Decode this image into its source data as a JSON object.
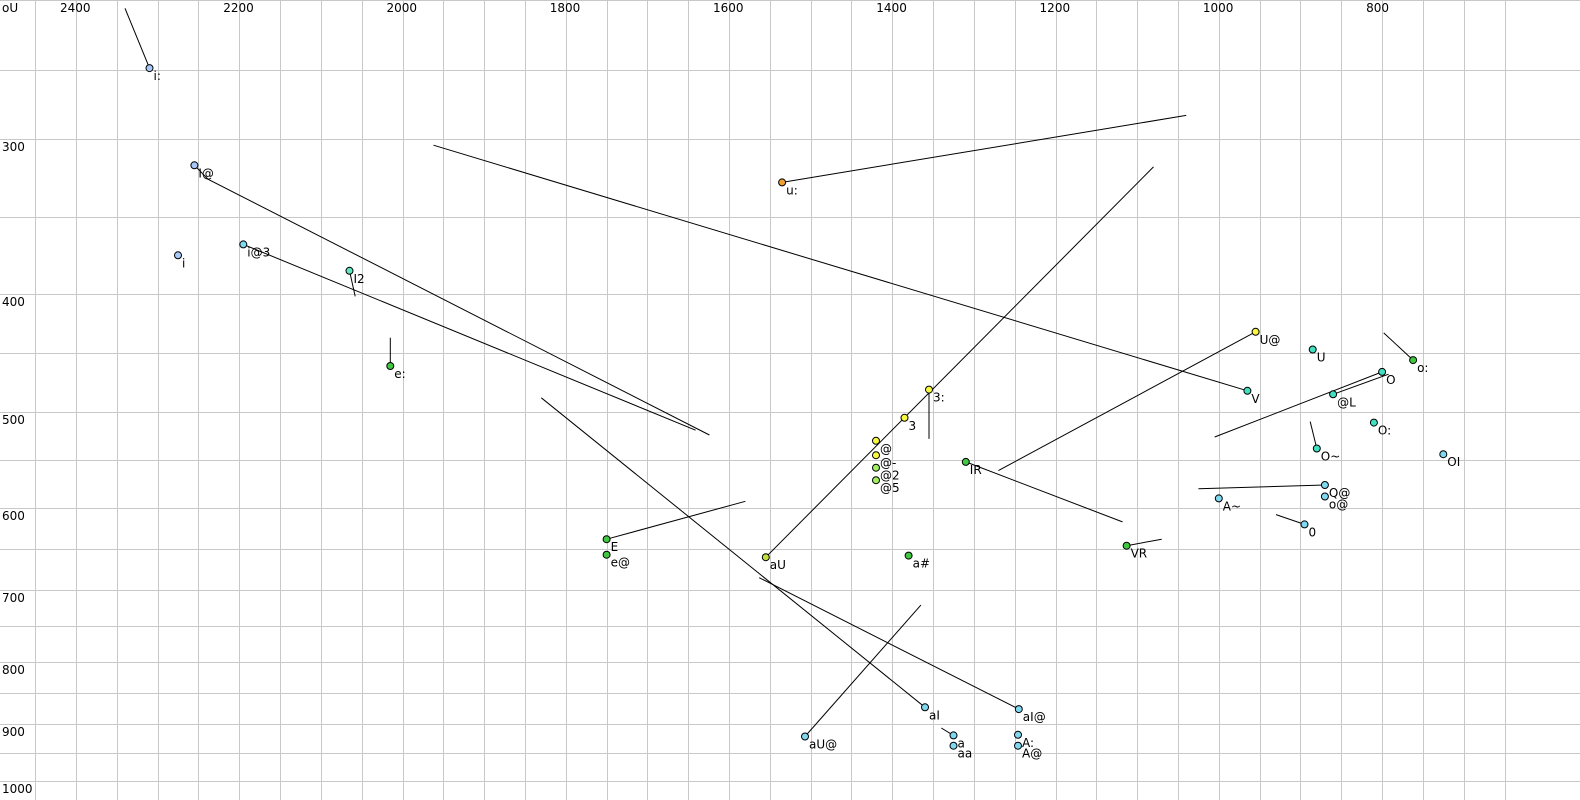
{
  "chart_data": {
    "type": "scatter",
    "title": "",
    "corner_label": "oU",
    "x_axis": {
      "reversed": true,
      "tick_labels": [
        "2400",
        "2200",
        "2000",
        "1800",
        "1600",
        "1400",
        "1200",
        "1000",
        "800"
      ],
      "tick_values": [
        2400,
        2200,
        2000,
        1800,
        1600,
        1400,
        1200,
        1000,
        800
      ]
    },
    "y_axis": {
      "tick_labels": [
        "300",
        "400",
        "500",
        "600",
        "700",
        "800",
        "900",
        "1000"
      ],
      "tick_values": [
        300,
        400,
        500,
        600,
        700,
        800,
        900,
        1000
      ]
    },
    "grid": true,
    "points": [
      {
        "label": "i:",
        "f2": 2310,
        "f1": 249,
        "color": "#a8c8f8",
        "track": [
          [
            2340,
            206
          ]
        ]
      },
      {
        "label": "I@",
        "f2": 2255,
        "f1": 317,
        "color": "#a8c8f8",
        "track": [
          [
            2238,
            326
          ],
          [
            1624,
            524
          ]
        ]
      },
      {
        "label": "i",
        "f2": 2275,
        "f1": 375,
        "color": "#a8c8f8",
        "track": []
      },
      {
        "label": "i@3",
        "f2": 2195,
        "f1": 368,
        "color": "#80d8f0",
        "track": [
          [
            1641,
            519
          ]
        ]
      },
      {
        "label": "I2",
        "f2": 2065,
        "f1": 385,
        "color": "#60e8c0",
        "track": [
          [
            2058,
            402
          ]
        ]
      },
      {
        "label": "e:",
        "f2": 2015,
        "f1": 461,
        "color": "#40c840",
        "track": [
          [
            2015,
            437
          ]
        ]
      },
      {
        "label": "u:",
        "f2": 1535,
        "f1": 328,
        "color": "#f0a030",
        "track": [
          [
            1040,
            283
          ]
        ]
      },
      {
        "label": "3:",
        "f2": 1355,
        "f1": 481,
        "color": "#f8f840",
        "track": [
          [
            1355,
            528
          ]
        ]
      },
      {
        "label": "3",
        "f2": 1385,
        "f1": 506,
        "color": "#f8f840",
        "track": []
      },
      {
        "label": "@",
        "f2": 1420,
        "f1": 530,
        "color": "#f8f840",
        "track": []
      },
      {
        "label": "@-",
        "f2": 1420,
        "f1": 545,
        "color": "#f8f840",
        "track": []
      },
      {
        "label": "@2",
        "f2": 1420,
        "f1": 558,
        "color": "#a0f060",
        "track": []
      },
      {
        "label": "@5",
        "f2": 1420,
        "f1": 571,
        "color": "#a0f060",
        "track": []
      },
      {
        "label": "IR",
        "f2": 1310,
        "f1": 552,
        "color": "#40c840",
        "track": [
          [
            1118,
            617
          ]
        ]
      },
      {
        "label": "E",
        "f2": 1750,
        "f1": 638,
        "color": "#40c840",
        "track": [
          [
            1580,
            593
          ]
        ]
      },
      {
        "label": "e@",
        "f2": 1750,
        "f1": 657,
        "color": "#40c840",
        "track": []
      },
      {
        "label": "aU",
        "f2": 1555,
        "f1": 660,
        "color": "#c0e040",
        "track": [
          [
            1080,
            318
          ]
        ]
      },
      {
        "label": "a#",
        "f2": 1380,
        "f1": 658,
        "color": "#40c840",
        "track": []
      },
      {
        "label": "VR",
        "f2": 1113,
        "f1": 646,
        "color": "#40c840",
        "track": [
          [
            1070,
            638
          ]
        ]
      },
      {
        "label": "U@",
        "f2": 955,
        "f1": 432,
        "color": "#f8f840",
        "track": [
          [
            1270,
            561
          ]
        ]
      },
      {
        "label": "U",
        "f2": 885,
        "f1": 447,
        "color": "#40e0c0",
        "track": []
      },
      {
        "label": "V",
        "f2": 965,
        "f1": 482,
        "color": "#40e0c0",
        "track": [
          [
            1962,
            304
          ]
        ]
      },
      {
        "label": "@L",
        "f2": 860,
        "f1": 485,
        "color": "#40e0c0",
        "track": [
          [
            792,
            468
          ]
        ]
      },
      {
        "label": "O",
        "f2": 800,
        "f1": 466,
        "color": "#40e0c0",
        "track": [
          [
            1005,
            526
          ]
        ]
      },
      {
        "label": "o:",
        "f2": 762,
        "f1": 456,
        "color": "#40c840",
        "track": [
          [
            798,
            433
          ]
        ]
      },
      {
        "label": "O:",
        "f2": 810,
        "f1": 511,
        "color": "#40e0c0",
        "track": []
      },
      {
        "label": "O~",
        "f2": 880,
        "f1": 538,
        "color": "#40e0c0",
        "track": [
          [
            888,
            510
          ]
        ]
      },
      {
        "label": "OI",
        "f2": 725,
        "f1": 544,
        "color": "#80d8f0",
        "track": []
      },
      {
        "label": "A~",
        "f2": 1000,
        "f1": 590,
        "color": "#80d8f0",
        "track": []
      },
      {
        "label": "Q@",
        "f2": 870,
        "f1": 576,
        "color": "#80d8f0",
        "track": [
          [
            1025,
            580
          ]
        ]
      },
      {
        "label": "o@",
        "f2": 870,
        "f1": 588,
        "color": "#80d8f0",
        "track": []
      },
      {
        "label": "0",
        "f2": 895,
        "f1": 620,
        "color": "#80d8f0",
        "track": [
          [
            930,
            608
          ]
        ]
      },
      {
        "label": "aU@",
        "f2": 1507,
        "f1": 922,
        "color": "#80d8f0",
        "track": [
          [
            1365,
            721
          ]
        ]
      },
      {
        "label": "aI",
        "f2": 1360,
        "f1": 873,
        "color": "#80d8f0",
        "track": [
          [
            1830,
            488
          ]
        ]
      },
      {
        "label": "a",
        "f2": 1325,
        "f1": 920,
        "color": "#80d8f0",
        "track": [
          [
            1340,
            907
          ]
        ]
      },
      {
        "label": "aa",
        "f2": 1325,
        "f1": 938,
        "color": "#80d8f0",
        "track": []
      },
      {
        "label": "aI@",
        "f2": 1245,
        "f1": 876,
        "color": "#80d8f0",
        "track": [
          [
            1563,
            685
          ]
        ]
      },
      {
        "label": "A:",
        "f2": 1246,
        "f1": 919,
        "color": "#80d8f0",
        "track": []
      },
      {
        "label": "A@",
        "f2": 1246,
        "f1": 938,
        "color": "#80d8f0",
        "track": []
      }
    ]
  }
}
